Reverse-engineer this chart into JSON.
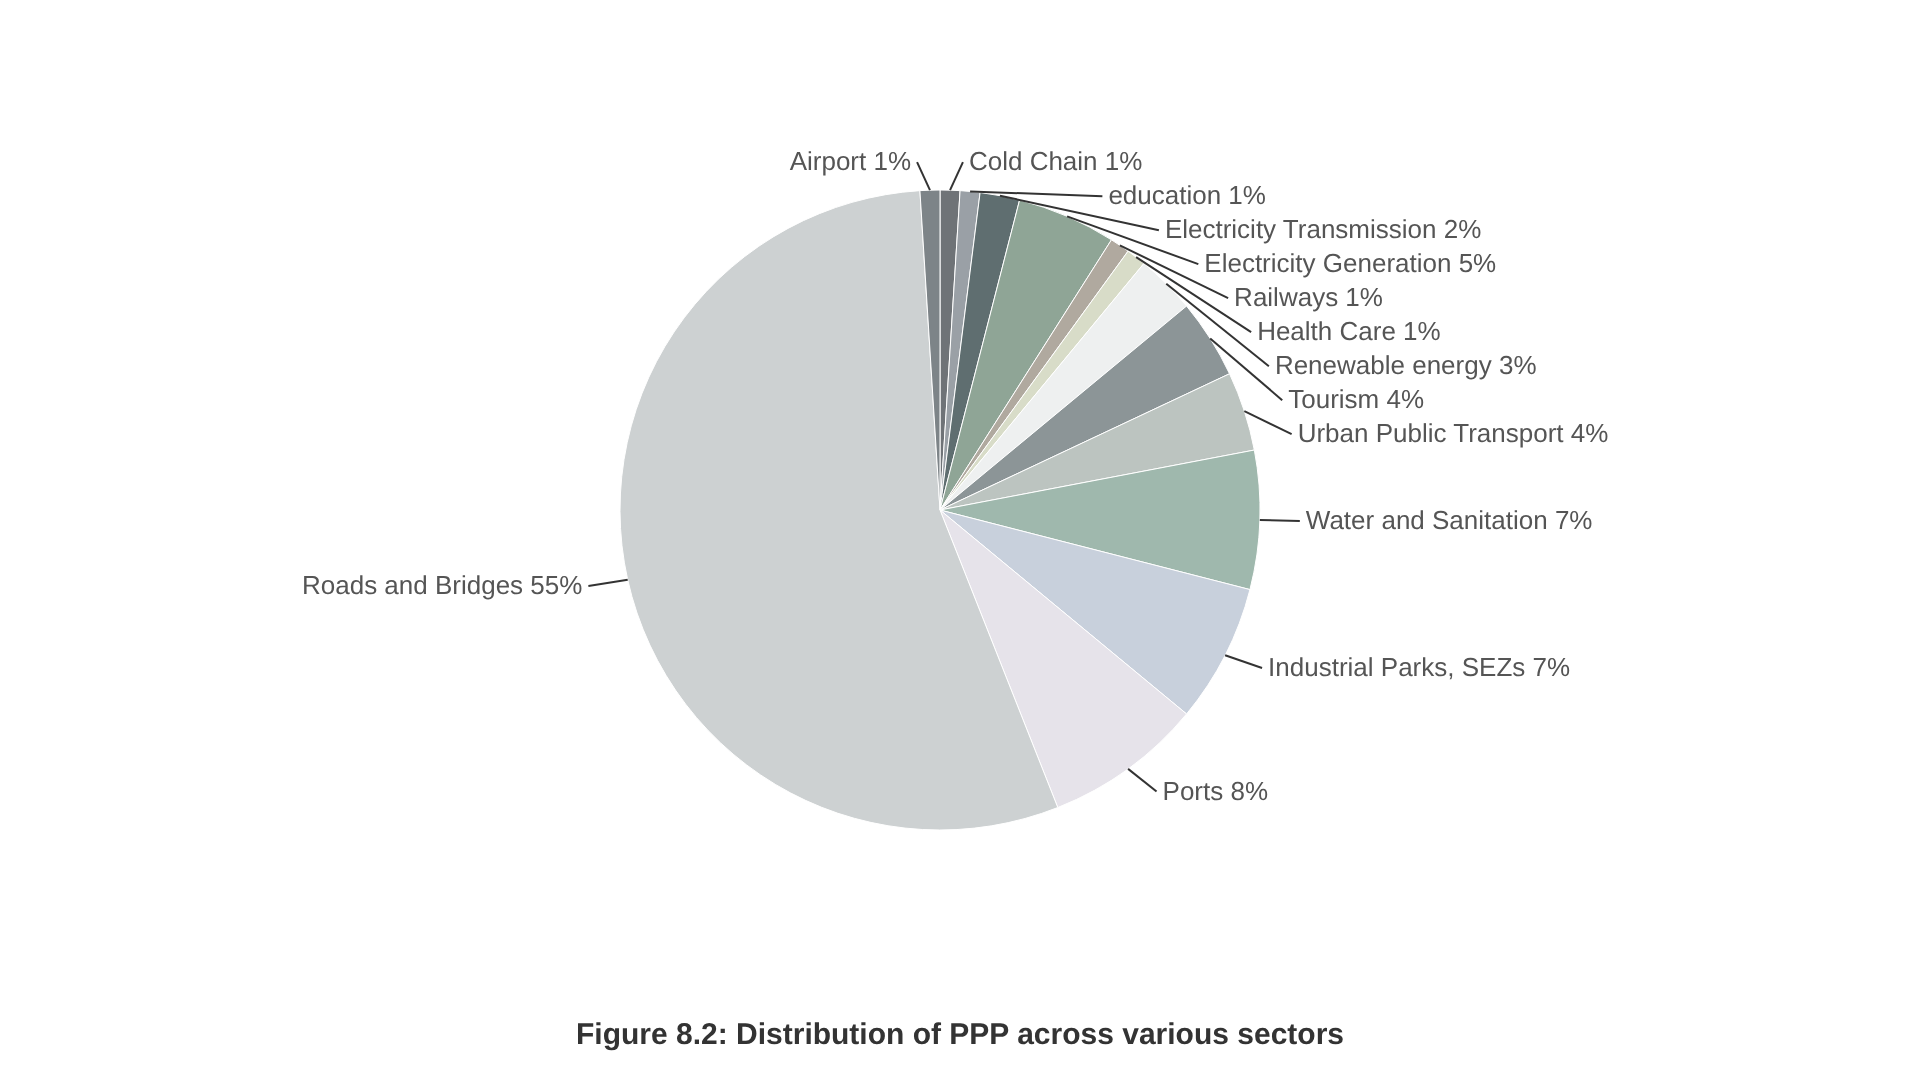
{
  "chart_data": {
    "type": "pie",
    "title": "Figure 8.2: Distribution of PPP across various sectors",
    "categories": [
      "Cold Chain",
      "education",
      "Electricity Transmission",
      "Electricity Generation",
      "Railways",
      "Health Care",
      "Renewable energy",
      "Tourism",
      "Urban Public Transport",
      "Water and Sanitation",
      "Industrial Parks, SEZs",
      "Ports",
      "Roads and Bridges",
      "Airport"
    ],
    "values": [
      1,
      1,
      2,
      5,
      1,
      1,
      3,
      4,
      4,
      7,
      7,
      8,
      55,
      1
    ],
    "value_labels": [
      "1%",
      "1%",
      "2%",
      "5%",
      "1%",
      "1%",
      "3%",
      "4%",
      "4%",
      "7%",
      "7%",
      "8%",
      "55%",
      "1%"
    ],
    "colors": [
      "#6f7377",
      "#9aa0a6",
      "#5f6e70",
      "#8fa596",
      "#b0a99f",
      "#d8dcc8",
      "#eef0f0",
      "#8c9597",
      "#bcc4c0",
      "#9fb8ad",
      "#c8d0dc",
      "#e6e3ea",
      "#cdd1d2",
      "#7d8488"
    ]
  }
}
